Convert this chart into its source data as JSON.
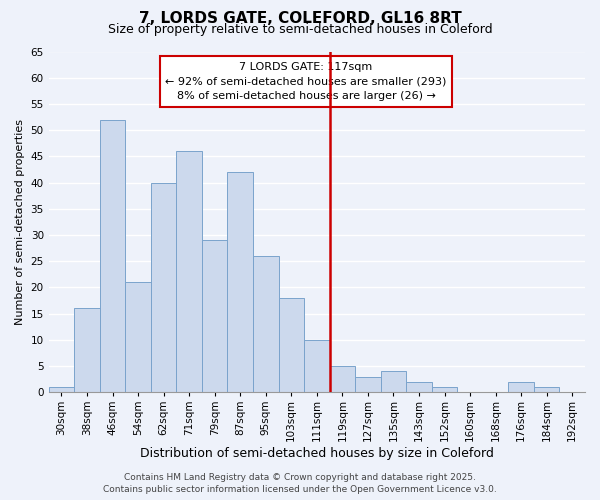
{
  "title": "7, LORDS GATE, COLEFORD, GL16 8RT",
  "subtitle": "Size of property relative to semi-detached houses in Coleford",
  "xlabel": "Distribution of semi-detached houses by size in Coleford",
  "ylabel": "Number of semi-detached properties",
  "bar_labels": [
    "30sqm",
    "38sqm",
    "46sqm",
    "54sqm",
    "62sqm",
    "71sqm",
    "79sqm",
    "87sqm",
    "95sqm",
    "103sqm",
    "111sqm",
    "119sqm",
    "127sqm",
    "135sqm",
    "143sqm",
    "152sqm",
    "160sqm",
    "168sqm",
    "176sqm",
    "184sqm",
    "192sqm"
  ],
  "bar_values": [
    1,
    16,
    52,
    21,
    40,
    46,
    29,
    42,
    26,
    18,
    10,
    5,
    3,
    4,
    2,
    1,
    0,
    0,
    2,
    1,
    0
  ],
  "bar_color": "#ccd9ed",
  "bar_edgecolor": "#7aa3cc",
  "ylim": [
    0,
    65
  ],
  "yticks": [
    0,
    5,
    10,
    15,
    20,
    25,
    30,
    35,
    40,
    45,
    50,
    55,
    60,
    65
  ],
  "vline_index": 11,
  "vline_color": "#cc0000",
  "annotation_title": "7 LORDS GATE: 117sqm",
  "annotation_line1": "← 92% of semi-detached houses are smaller (293)",
  "annotation_line2": "8% of semi-detached houses are larger (26) →",
  "annotation_box_facecolor": "#ffffff",
  "annotation_box_edgecolor": "#cc0000",
  "footer_line1": "Contains HM Land Registry data © Crown copyright and database right 2025.",
  "footer_line2": "Contains public sector information licensed under the Open Government Licence v3.0.",
  "background_color": "#eef2fa",
  "grid_color": "#ffffff",
  "title_fontsize": 11,
  "subtitle_fontsize": 9,
  "xlabel_fontsize": 9,
  "ylabel_fontsize": 8,
  "tick_fontsize": 7.5,
  "annotation_fontsize": 8,
  "footer_fontsize": 6.5
}
